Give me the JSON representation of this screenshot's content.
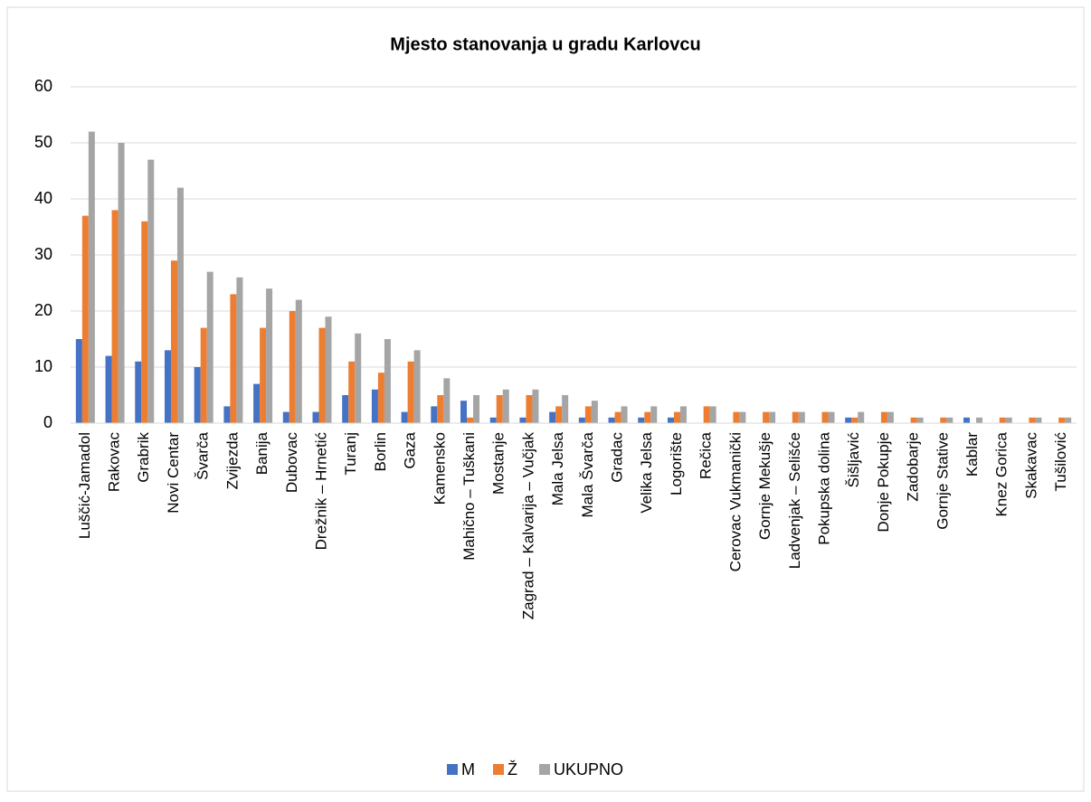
{
  "chart_data": {
    "type": "bar",
    "title": "Mjesto stanovanja u gradu Karlovcu",
    "categories": [
      "Luščić-Jamadol",
      "Rakovac",
      "Grabrik",
      "Novi Centar",
      "Švarča",
      "Zvijezda",
      "Banija",
      "Dubovac",
      "Drežnik – Hrnetić",
      "Turanj",
      "Borlin",
      "Gaza",
      "Kamensko",
      "Mahično – Tuškani",
      "Mostanje",
      "Zagrad – Kalvarija – Vučjak",
      "Mala Jelsa",
      "Mala Švarča",
      "Gradac",
      "Velika Jelsa",
      "Logorište",
      "Rečica",
      "Cerovac Vukmanički",
      "Gornje Mekušje",
      "Ladvenjak – Selišće",
      "Pokupska dolina",
      "Šišljavić",
      "Donje Pokupje",
      "Zadobarje",
      "Gornje Stative",
      "Kablar",
      "Knez Gorica",
      "Skakavac",
      "Tušilović"
    ],
    "series": [
      {
        "name": "M",
        "color": "#4472c4",
        "values": [
          15,
          12,
          11,
          13,
          10,
          3,
          7,
          2,
          2,
          5,
          6,
          2,
          3,
          4,
          1,
          1,
          2,
          1,
          1,
          1,
          1,
          0,
          0,
          0,
          0,
          0,
          1,
          0,
          0,
          0,
          1,
          0,
          0,
          0
        ]
      },
      {
        "name": "Ž",
        "color": "#ed7d31",
        "values": [
          37,
          38,
          36,
          29,
          17,
          23,
          17,
          20,
          17,
          11,
          9,
          11,
          5,
          1,
          5,
          5,
          3,
          3,
          2,
          2,
          2,
          3,
          2,
          2,
          2,
          2,
          1,
          2,
          1,
          1,
          0,
          1,
          1,
          1
        ]
      },
      {
        "name": "UKUPNO",
        "color": "#a5a5a5",
        "values": [
          52,
          50,
          47,
          42,
          27,
          26,
          24,
          22,
          19,
          16,
          15,
          13,
          8,
          5,
          6,
          6,
          5,
          4,
          3,
          3,
          3,
          3,
          2,
          2,
          2,
          2,
          2,
          2,
          1,
          1,
          1,
          1,
          1,
          1
        ]
      }
    ],
    "ylim": [
      0,
      60
    ],
    "yticks": [
      0,
      10,
      20,
      30,
      40,
      50,
      60
    ],
    "grid": true,
    "legend": "bottom"
  }
}
